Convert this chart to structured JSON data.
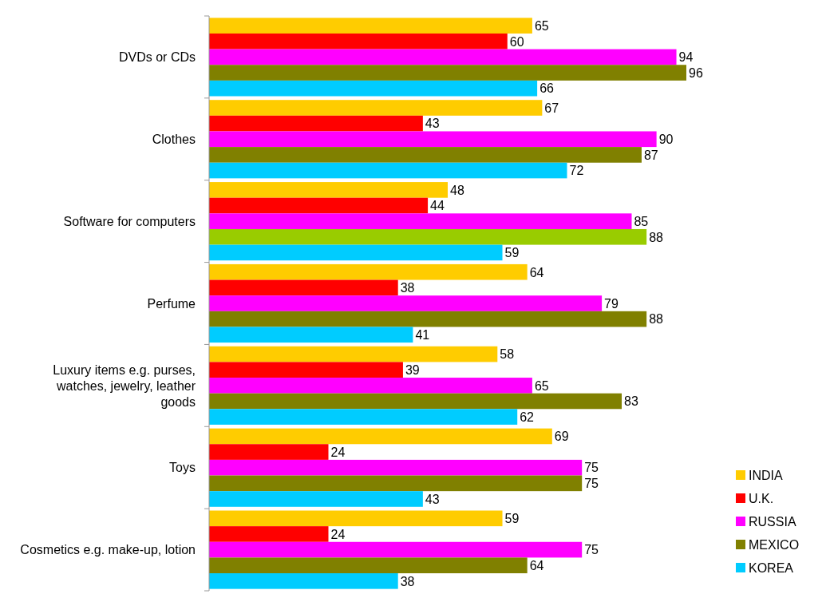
{
  "chart_data": {
    "type": "bar",
    "orientation": "horizontal",
    "data_labels": true,
    "legend": "bottom right",
    "categories": [
      "DVDs or CDs",
      "Clothes",
      "Software for computers",
      "Perfume",
      "Luxury items e.g. purses, watches, jewelry, leather goods",
      "Toys",
      "Cosmetics e.g. make-up, lotion"
    ],
    "series": [
      {
        "name": "INDIA",
        "color": "#ffcc00",
        "values": [
          65,
          67,
          48,
          64,
          58,
          69,
          59
        ]
      },
      {
        "name": "U.K.",
        "color": "#ff0000",
        "values": [
          60,
          43,
          44,
          38,
          39,
          24,
          24
        ]
      },
      {
        "name": "RUSSIA",
        "color": "#ff00ff",
        "values": [
          94,
          90,
          85,
          79,
          65,
          75,
          75
        ]
      },
      {
        "name": "MEXICO",
        "color": "#808000",
        "colors": [
          "#808000",
          "#808000",
          "#99cc00",
          "#808000",
          "#808000",
          "#808000",
          "#808000"
        ],
        "values": [
          96,
          87,
          88,
          88,
          83,
          75,
          64
        ]
      },
      {
        "name": "KOREA",
        "color": "#00ccff",
        "values": [
          66,
          72,
          59,
          41,
          62,
          43,
          38
        ]
      }
    ]
  }
}
